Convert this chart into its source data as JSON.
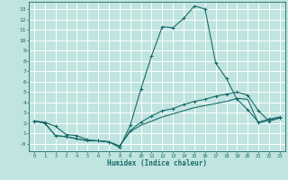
{
  "xlabel": "Humidex (Indice chaleur)",
  "background_color": "#c0e4e0",
  "grid_color": "#ffffff",
  "line_color": "#1a6b6b",
  "xlim": [
    -0.5,
    23.5
  ],
  "ylim": [
    -0.7,
    13.7
  ],
  "xticks": [
    0,
    1,
    2,
    3,
    4,
    5,
    6,
    7,
    8,
    9,
    10,
    11,
    12,
    13,
    14,
    15,
    16,
    17,
    18,
    19,
    20,
    21,
    22,
    23
  ],
  "yticks": [
    0,
    1,
    2,
    3,
    4,
    5,
    6,
    7,
    8,
    9,
    10,
    11,
    12,
    13
  ],
  "ylabels": [
    "-0",
    "1",
    "2",
    "3",
    "4",
    "5",
    "6",
    "7",
    "8",
    "9",
    "10",
    "11",
    "12",
    "13"
  ],
  "line1_x": [
    0,
    1,
    2,
    3,
    4,
    5,
    6,
    7,
    8,
    9,
    10,
    11,
    12,
    13,
    14,
    15,
    16,
    17,
    18,
    19,
    20,
    21,
    22,
    23
  ],
  "line1_y": [
    2.2,
    2.1,
    1.7,
    0.9,
    0.8,
    0.4,
    0.3,
    0.2,
    -0.35,
    1.8,
    5.3,
    8.5,
    11.3,
    11.2,
    12.1,
    13.3,
    13.0,
    7.8,
    6.3,
    4.3,
    3.3,
    2.1,
    2.4,
    2.6
  ],
  "line2_x": [
    0,
    1,
    2,
    3,
    4,
    5,
    6,
    7,
    8,
    9,
    10,
    11,
    12,
    13,
    14,
    15,
    16,
    17,
    18,
    19,
    20,
    21,
    22,
    23
  ],
  "line2_y": [
    2.2,
    2.0,
    0.8,
    0.7,
    0.5,
    0.3,
    0.3,
    0.2,
    -0.2,
    1.3,
    2.1,
    2.7,
    3.2,
    3.4,
    3.8,
    4.1,
    4.3,
    4.6,
    4.8,
    5.0,
    4.7,
    3.2,
    2.2,
    2.5
  ],
  "line3_x": [
    0,
    1,
    2,
    3,
    4,
    5,
    6,
    7,
    8,
    9,
    10,
    11,
    12,
    13,
    14,
    15,
    16,
    17,
    18,
    19,
    20,
    21,
    22,
    23
  ],
  "line3_y": [
    2.2,
    2.0,
    0.8,
    0.7,
    0.5,
    0.3,
    0.3,
    0.2,
    -0.2,
    1.2,
    1.8,
    2.2,
    2.6,
    2.9,
    3.2,
    3.5,
    3.7,
    3.9,
    4.1,
    4.4,
    4.3,
    2.0,
    2.3,
    2.5
  ]
}
